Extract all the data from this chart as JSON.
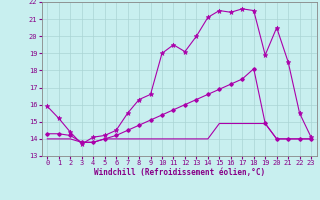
{
  "xlabel": "Windchill (Refroidissement éolien,°C)",
  "bg_color": "#c8efef",
  "grid_color": "#aad4d4",
  "line_color": "#aa00aa",
  "xlim": [
    -0.5,
    23.5
  ],
  "ylim": [
    13,
    22
  ],
  "yticks": [
    13,
    14,
    15,
    16,
    17,
    18,
    19,
    20,
    21,
    22
  ],
  "xticks": [
    0,
    1,
    2,
    3,
    4,
    5,
    6,
    7,
    8,
    9,
    10,
    11,
    12,
    13,
    14,
    15,
    16,
    17,
    18,
    19,
    20,
    21,
    22,
    23
  ],
  "curve1_x": [
    0,
    1,
    2,
    3,
    4,
    5,
    6,
    7,
    8,
    9,
    10,
    11,
    12,
    13,
    14,
    15,
    16,
    17,
    18,
    19,
    20,
    21,
    22,
    23
  ],
  "curve1_y": [
    15.9,
    15.2,
    14.4,
    13.7,
    14.1,
    14.2,
    14.5,
    15.5,
    16.3,
    16.6,
    19.0,
    19.5,
    19.1,
    20.0,
    21.1,
    21.5,
    21.4,
    21.6,
    21.5,
    18.9,
    20.5,
    18.5,
    15.5,
    14.1
  ],
  "curve2_x": [
    0,
    1,
    2,
    3,
    4,
    5,
    6,
    7,
    8,
    9,
    10,
    11,
    12,
    13,
    14,
    15,
    16,
    17,
    18,
    19,
    20,
    21,
    22,
    23
  ],
  "curve2_y": [
    14.3,
    14.3,
    14.2,
    13.8,
    13.8,
    14.0,
    14.2,
    14.5,
    14.8,
    15.1,
    15.4,
    15.7,
    16.0,
    16.3,
    16.6,
    16.9,
    17.2,
    17.5,
    18.1,
    14.9,
    14.0,
    14.0,
    14.0,
    14.0
  ],
  "curve3_x": [
    0,
    1,
    2,
    3,
    4,
    5,
    6,
    7,
    8,
    9,
    10,
    11,
    12,
    13,
    14,
    15,
    16,
    17,
    18,
    19,
    20,
    21,
    22,
    23
  ],
  "curve3_y": [
    14.0,
    14.0,
    14.0,
    13.8,
    13.8,
    14.0,
    14.0,
    14.0,
    14.0,
    14.0,
    14.0,
    14.0,
    14.0,
    14.0,
    14.0,
    14.9,
    14.9,
    14.9,
    14.9,
    14.9,
    14.0,
    14.0,
    14.0,
    14.0
  ],
  "tick_color": "#880088",
  "label_fontsize": 5.5,
  "tick_fontsize": 5.0
}
